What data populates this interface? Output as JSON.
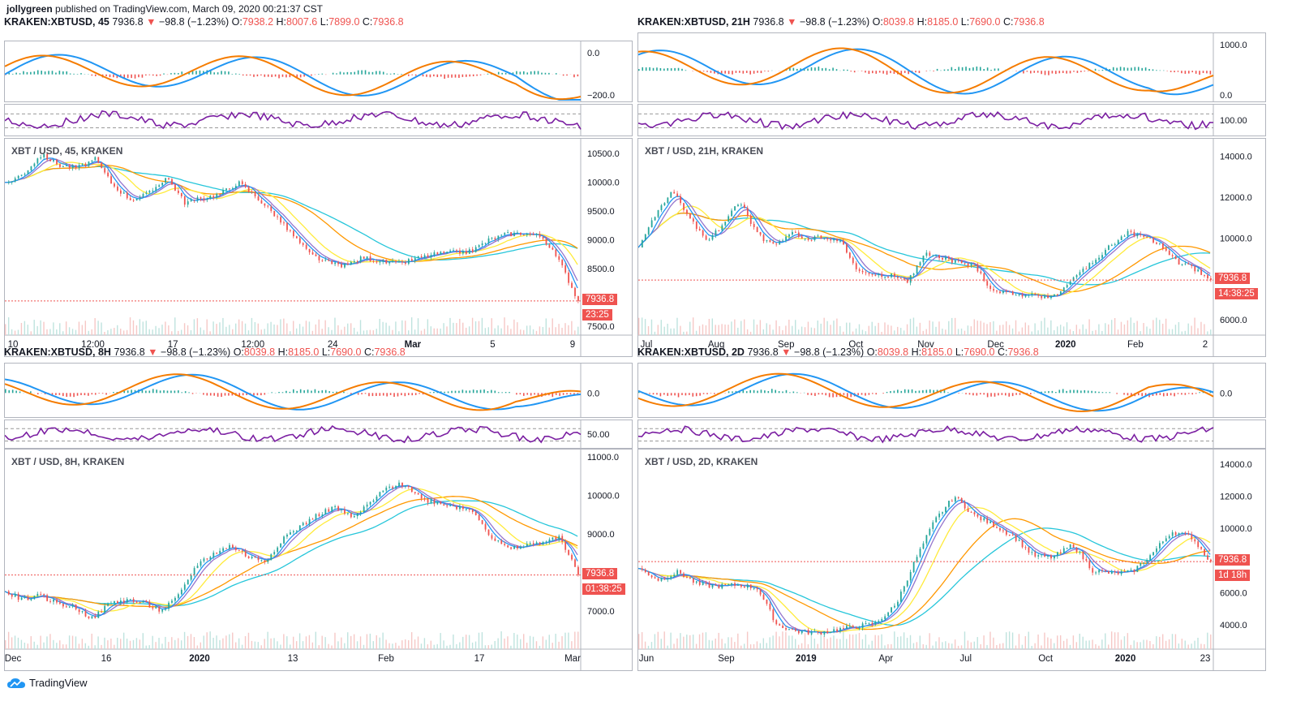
{
  "header": {
    "author": "jollygreen",
    "published": "published on TradingView.com, March 09, 2020 00:21:37 CST"
  },
  "footer": {
    "brand": "TradingView",
    "icon": "tradingview-cloud-icon"
  },
  "colors": {
    "up": "#26a69a",
    "down": "#ef5350",
    "macd": "#2196f3",
    "signal": "#f57c00",
    "rsi": "#7b1fa2",
    "ema1": "#ffeb3b",
    "ema2": "#ff9800",
    "ema3": "#26c6da"
  },
  "panels": [
    {
      "symbol": "KRAKEN:XBTUSD,",
      "timeframe": "45",
      "price": "7936.8",
      "arrow": "▼",
      "change": "−98.8 (−1.23%)",
      "o_label": "O:",
      "o": "7938.2",
      "h_label": "H:",
      "h": "8007.6",
      "l_label": "L:",
      "l": "7899.0",
      "c_label": "C:",
      "c": "7936.8",
      "chart_title": "XBT / USD, 45, KRAKEN",
      "macd_ticks": [
        "0.0",
        "−200.0"
      ],
      "rsi_ticks": [],
      "price_ticks": [
        "10500.0",
        "10000.0",
        "9500.0",
        "9000.0",
        "8500.0",
        "8000.0",
        "7500.0"
      ],
      "last_price_tag": "7936.8",
      "countdown_tag": "23:25",
      "x_labels": [
        {
          "t": "10",
          "b": false
        },
        {
          "t": "12:00",
          "b": false
        },
        {
          "t": "17",
          "b": false
        },
        {
          "t": "12:00",
          "b": false
        },
        {
          "t": "24",
          "b": false
        },
        {
          "t": "Mar",
          "b": true
        },
        {
          "t": "5",
          "b": false
        },
        {
          "t": "9",
          "b": false
        }
      ],
      "chart_data": {
        "type": "line",
        "ylim": [
          7400,
          10700
        ],
        "y": [
          9980,
          10150,
          10480,
          10300,
          10250,
          10400,
          9950,
          9700,
          9800,
          10100,
          9650,
          9720,
          9800,
          10000,
          9750,
          9450,
          9100,
          8750,
          8600,
          8550,
          8700,
          8620,
          8580,
          8680,
          8750,
          8780,
          8800,
          9000,
          9100,
          9120,
          9050,
          8600,
          7936.8
        ]
      }
    },
    {
      "symbol": "KRAKEN:XBTUSD,",
      "timeframe": "21H",
      "price": "7936.8",
      "arrow": "▼",
      "change": "−98.8 (−1.23%)",
      "o_label": "O:",
      "o": "8039.8",
      "h_label": "H:",
      "h": "8185.0",
      "l_label": "L:",
      "l": "7690.0",
      "c_label": "C:",
      "c": "7936.8",
      "chart_title": "XBT / USD, 21H, KRAKEN",
      "macd_ticks": [
        "1000.0",
        "0.0"
      ],
      "rsi_ticks": [
        "100.00"
      ],
      "price_ticks": [
        "14000.0",
        "12000.0",
        "10000.0",
        "8000.0",
        "6000.0"
      ],
      "last_price_tag": "7936.8",
      "countdown_tag": "14:38:25",
      "x_labels": [
        {
          "t": "Jul",
          "b": false
        },
        {
          "t": "Aug",
          "b": false
        },
        {
          "t": "Sep",
          "b": false
        },
        {
          "t": "Oct",
          "b": false
        },
        {
          "t": "Nov",
          "b": false
        },
        {
          "t": "Dec",
          "b": false
        },
        {
          "t": "2020",
          "b": true
        },
        {
          "t": "Feb",
          "b": false
        },
        {
          "t": "2",
          "b": false
        }
      ],
      "chart_data": {
        "type": "line",
        "ylim": [
          5400,
          14700
        ],
        "y": [
          9500,
          11200,
          12300,
          11000,
          9800,
          10700,
          11800,
          10200,
          9600,
          10300,
          9900,
          10100,
          9800,
          8400,
          8100,
          8200,
          7900,
          9200,
          9000,
          8800,
          8600,
          7400,
          7300,
          7200,
          7100,
          7300,
          8200,
          8800,
          9600,
          10300,
          10000,
          9700,
          8800,
          8500,
          7936.8
        ]
      }
    },
    {
      "symbol": "KRAKEN:XBTUSD,",
      "timeframe": "8H",
      "price": "7936.8",
      "arrow": "▼",
      "change": "−98.8 (−1.23%)",
      "o_label": "O:",
      "o": "8039.8",
      "h_label": "H:",
      "h": "8185.0",
      "l_label": "L:",
      "l": "7690.0",
      "c_label": "C:",
      "c": "7936.8",
      "chart_title": "XBT / USD, 8H, KRAKEN",
      "macd_ticks": [
        "0.0"
      ],
      "rsi_ticks": [
        "50.00"
      ],
      "price_ticks": [
        "11000.0",
        "10000.0",
        "9000.0",
        "8000.0",
        "7000.0"
      ],
      "last_price_tag": "7936.8",
      "countdown_tag": "01:38:25",
      "x_labels": [
        {
          "t": "Dec",
          "b": false
        },
        {
          "t": "16",
          "b": false
        },
        {
          "t": "2020",
          "b": true
        },
        {
          "t": "13",
          "b": false
        },
        {
          "t": "Feb",
          "b": false
        },
        {
          "t": "17",
          "b": false
        },
        {
          "t": "Mar",
          "b": false
        }
      ],
      "chart_data": {
        "type": "line",
        "ylim": [
          6100,
          11100
        ],
        "y": [
          7500,
          7300,
          7400,
          7200,
          7100,
          6800,
          7200,
          7300,
          7200,
          7000,
          7400,
          8200,
          8500,
          8700,
          8400,
          8300,
          8900,
          9200,
          9500,
          9700,
          9400,
          9800,
          10200,
          10300,
          9900,
          9800,
          9700,
          9600,
          8900,
          8600,
          8700,
          8800,
          8900,
          7936.8
        ]
      }
    },
    {
      "symbol": "KRAKEN:XBTUSD,",
      "timeframe": "2D",
      "price": "7936.8",
      "arrow": "▼",
      "change": "−98.8 (−1.23%)",
      "o_label": "O:",
      "o": "8039.8",
      "h_label": "H:",
      "h": "8185.0",
      "l_label": "L:",
      "l": "7690.0",
      "c_label": "C:",
      "c": "7936.8",
      "chart_title": "XBT / USD, 2D, KRAKEN",
      "macd_ticks": [
        "0.0"
      ],
      "rsi_ticks": [],
      "price_ticks": [
        "14000.0",
        "12000.0",
        "10000.0",
        "8000.0",
        "6000.0",
        "4000.0"
      ],
      "last_price_tag": "7936.8",
      "countdown_tag": "1d 18h",
      "x_labels": [
        {
          "t": "Jun",
          "b": false
        },
        {
          "t": "Sep",
          "b": false
        },
        {
          "t": "2019",
          "b": true
        },
        {
          "t": "Apr",
          "b": false
        },
        {
          "t": "Jul",
          "b": false
        },
        {
          "t": "Oct",
          "b": false
        },
        {
          "t": "2020",
          "b": true
        },
        {
          "t": "23",
          "b": false
        }
      ],
      "chart_data": {
        "type": "line",
        "ylim": [
          2700,
          14700
        ],
        "y": [
          7500,
          6800,
          7300,
          6500,
          6400,
          6500,
          6300,
          4000,
          3600,
          3500,
          3700,
          3900,
          4100,
          5200,
          8000,
          10500,
          12000,
          10800,
          10200,
          9500,
          8300,
          8200,
          9000,
          7400,
          7200,
          7300,
          8400,
          9800,
          9500,
          7936.8
        ]
      }
    }
  ]
}
